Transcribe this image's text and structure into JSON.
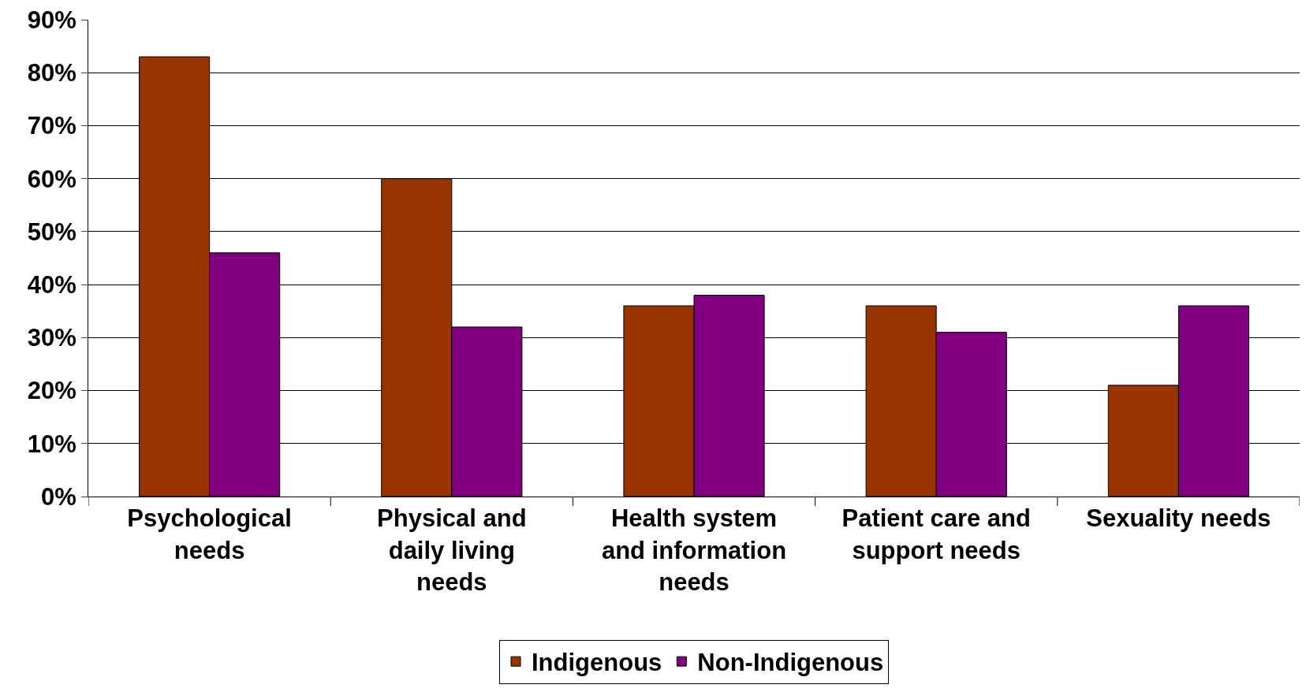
{
  "chart_data": {
    "type": "bar",
    "categories": [
      "Psychological needs",
      "Physical and daily living needs",
      "Health system and information needs",
      "Patient care and support needs",
      "Sexuality needs"
    ],
    "series": [
      {
        "name": "Indigenous",
        "color": "#993300",
        "values": [
          83,
          60,
          36,
          36,
          21
        ]
      },
      {
        "name": "Non-Indigenous",
        "color": "#800080",
        "values": [
          46,
          32,
          38,
          31,
          36
        ]
      }
    ],
    "ylim": [
      0,
      90
    ],
    "yticks": [
      {
        "value": 0,
        "label": "0%"
      },
      {
        "value": 10,
        "label": "10%"
      },
      {
        "value": 20,
        "label": "20%"
      },
      {
        "value": 30,
        "label": "30%"
      },
      {
        "value": 40,
        "label": "40%"
      },
      {
        "value": 50,
        "label": "50%"
      },
      {
        "value": 60,
        "label": "60%"
      },
      {
        "value": 70,
        "label": "70%"
      },
      {
        "value": 80,
        "label": "80%"
      },
      {
        "value": 90,
        "label": "90%"
      }
    ],
    "grid": "y",
    "legend": "bottom"
  }
}
